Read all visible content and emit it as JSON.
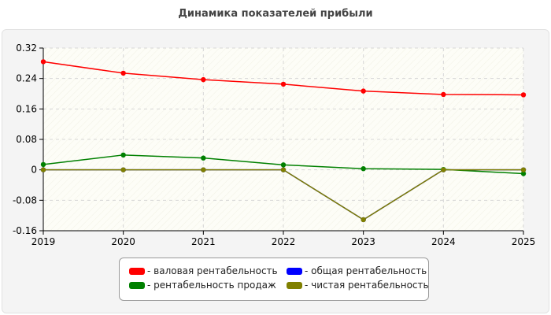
{
  "chart_data": {
    "type": "line",
    "title": "Динамика показателей прибыли",
    "x": [
      "2019",
      "2020",
      "2021",
      "2022",
      "2023",
      "2024",
      "2025"
    ],
    "ylim": [
      -0.16,
      0.32
    ],
    "yticks": [
      "0.32",
      "0.24",
      "0.16",
      "0.08",
      "0",
      "-0.08",
      "-0.16"
    ],
    "grid": true,
    "legend_position": "bottom",
    "series": [
      {
        "name": "- валовая рентабельность",
        "color": "#ff0000",
        "values": [
          0.284,
          0.254,
          0.237,
          0.225,
          0.207,
          0.198,
          0.197
        ]
      },
      {
        "name": "- общая рентабельность",
        "color": "#0000ff",
        "values": [
          0,
          0,
          0,
          0,
          -0.131,
          0,
          0
        ]
      },
      {
        "name": "- рентабельность продаж",
        "color": "#008000",
        "values": [
          0.014,
          0.039,
          0.031,
          0.013,
          0.003,
          0.001,
          -0.01
        ]
      },
      {
        "name": "- чистая рентабельность",
        "color": "#808000",
        "values": [
          0,
          0,
          0,
          0,
          -0.131,
          0,
          0
        ]
      }
    ]
  }
}
